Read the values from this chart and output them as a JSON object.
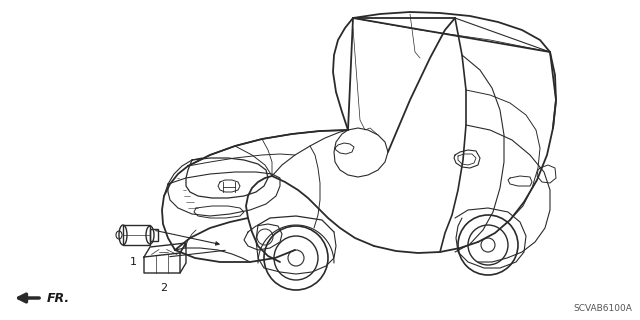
{
  "background_color": "#ffffff",
  "diagram_code": "SCVAB6100A",
  "fr_label": "FR.",
  "part1_label": "1",
  "part2_label": "2",
  "line_color": "#2a2a2a",
  "text_color": "#1a1a1a",
  "lw": 1.0
}
